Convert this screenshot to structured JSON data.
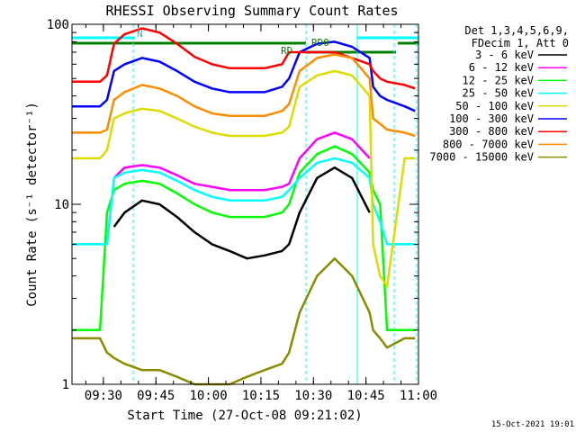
{
  "chart_data": {
    "type": "line",
    "title": "RHESSI Observing Summary Count Rates",
    "xlabel": "Start Time (27-Oct-08 09:21:02)",
    "ylabel": "Count Rate (s⁻¹ detector⁻¹)",
    "yscale": "log",
    "ylim": [
      1,
      100
    ],
    "xlim": [
      "09:21:02",
      "11:00:00"
    ],
    "x_ticks": [
      "09:30",
      "09:45",
      "10:00",
      "10:15",
      "10:30",
      "10:45",
      "11:00"
    ],
    "y_ticks": [
      "1",
      "10",
      "100"
    ],
    "legend_header": [
      "Det 1,3,4,5,6,9,",
      "FDecim 1, Att 0"
    ],
    "legend_position": "right",
    "annotations": [
      "N",
      "RD",
      "RD0"
    ],
    "footer": "15-Oct-2021 19:01",
    "x_minutes": [
      0,
      8,
      10,
      12,
      15,
      20,
      25,
      30,
      35,
      40,
      45,
      50,
      55,
      60,
      62,
      65,
      70,
      75,
      80,
      85,
      86,
      88,
      90,
      95,
      98
    ],
    "series": [
      {
        "name": "3 - 6 keV",
        "color": "#000000",
        "values": [
          null,
          null,
          null,
          7.5,
          9.0,
          10.5,
          10.0,
          8.5,
          7.0,
          6.0,
          5.5,
          5.0,
          5.2,
          5.5,
          6.0,
          9.0,
          14.0,
          16.0,
          14.0,
          9.0,
          null,
          null,
          null,
          null,
          null
        ]
      },
      {
        "name": "6 - 12 keV",
        "color": "#ff00ff",
        "values": [
          null,
          null,
          null,
          14.0,
          16.0,
          16.5,
          16.0,
          14.5,
          13.0,
          12.5,
          12.0,
          12.0,
          12.0,
          12.5,
          13.0,
          18.0,
          23.0,
          25.0,
          23.0,
          18.0,
          null,
          null,
          null,
          null,
          null
        ]
      },
      {
        "name": "12 - 25 keV",
        "color": "#00ff00",
        "values": [
          2.0,
          2.0,
          9.0,
          12.0,
          13.0,
          13.5,
          13.0,
          11.5,
          10.0,
          9.0,
          8.5,
          8.5,
          8.5,
          9.0,
          10.0,
          15.0,
          19.0,
          21.0,
          19.0,
          15.0,
          12.0,
          10.0,
          2.0,
          2.0,
          2.0
        ]
      },
      {
        "name": "25 - 50 keV",
        "color": "#00ffff",
        "values": [
          6.0,
          6.0,
          6.0,
          14.0,
          15.0,
          15.5,
          15.0,
          13.5,
          12.0,
          11.0,
          10.5,
          10.5,
          10.5,
          11.0,
          12.0,
          14.0,
          17.0,
          18.0,
          17.0,
          14.0,
          10.0,
          8.0,
          6.0,
          6.0,
          6.0
        ]
      },
      {
        "name": "50 - 100 keV",
        "color": "#dcdc00",
        "values": [
          18.0,
          18.0,
          20.0,
          30.0,
          32.0,
          34.0,
          33.0,
          30.0,
          27.0,
          25.0,
          24.0,
          24.0,
          24.0,
          25.0,
          27.0,
          45.0,
          52.0,
          55.0,
          52.0,
          40.0,
          6.0,
          4.0,
          3.5,
          18.0,
          18.0
        ]
      },
      {
        "name": "100 - 300 keV",
        "color": "#0000ff",
        "values": [
          35.0,
          35.0,
          38.0,
          55.0,
          60.0,
          65.0,
          62.0,
          55.0,
          48.0,
          44.0,
          42.0,
          42.0,
          42.0,
          45.0,
          50.0,
          70.0,
          78.0,
          80.0,
          75.0,
          65.0,
          45.0,
          40.0,
          38.0,
          35.0,
          33.0
        ]
      },
      {
        "name": "300 - 800 keV",
        "color": "#ff0000",
        "values": [
          48.0,
          48.0,
          52.0,
          78.0,
          88.0,
          95.0,
          90.0,
          78.0,
          66.0,
          60.0,
          57.0,
          57.0,
          57.0,
          60.0,
          70.0,
          70.0,
          70.0,
          70.0,
          65.0,
          60.0,
          55.0,
          50.0,
          48.0,
          46.0,
          44.0
        ]
      },
      {
        "name": "800 - 7000 keV",
        "color": "#ff8c00",
        "values": [
          25.0,
          25.0,
          26.0,
          38.0,
          42.0,
          46.0,
          44.0,
          40.0,
          35.0,
          32.0,
          31.0,
          31.0,
          31.0,
          33.0,
          36.0,
          55.0,
          65.0,
          68.0,
          65.0,
          50.0,
          30.0,
          28.0,
          26.0,
          25.0,
          24.0
        ]
      },
      {
        "name": "7000 - 15000 keV",
        "color": "#8b8b00",
        "values": [
          1.8,
          1.8,
          1.5,
          1.4,
          1.3,
          1.2,
          1.2,
          1.1,
          1.0,
          1.0,
          1.0,
          1.1,
          1.2,
          1.3,
          1.5,
          2.5,
          4.0,
          5.0,
          4.0,
          2.5,
          2.0,
          1.8,
          1.6,
          1.8,
          1.8
        ]
      }
    ]
  }
}
